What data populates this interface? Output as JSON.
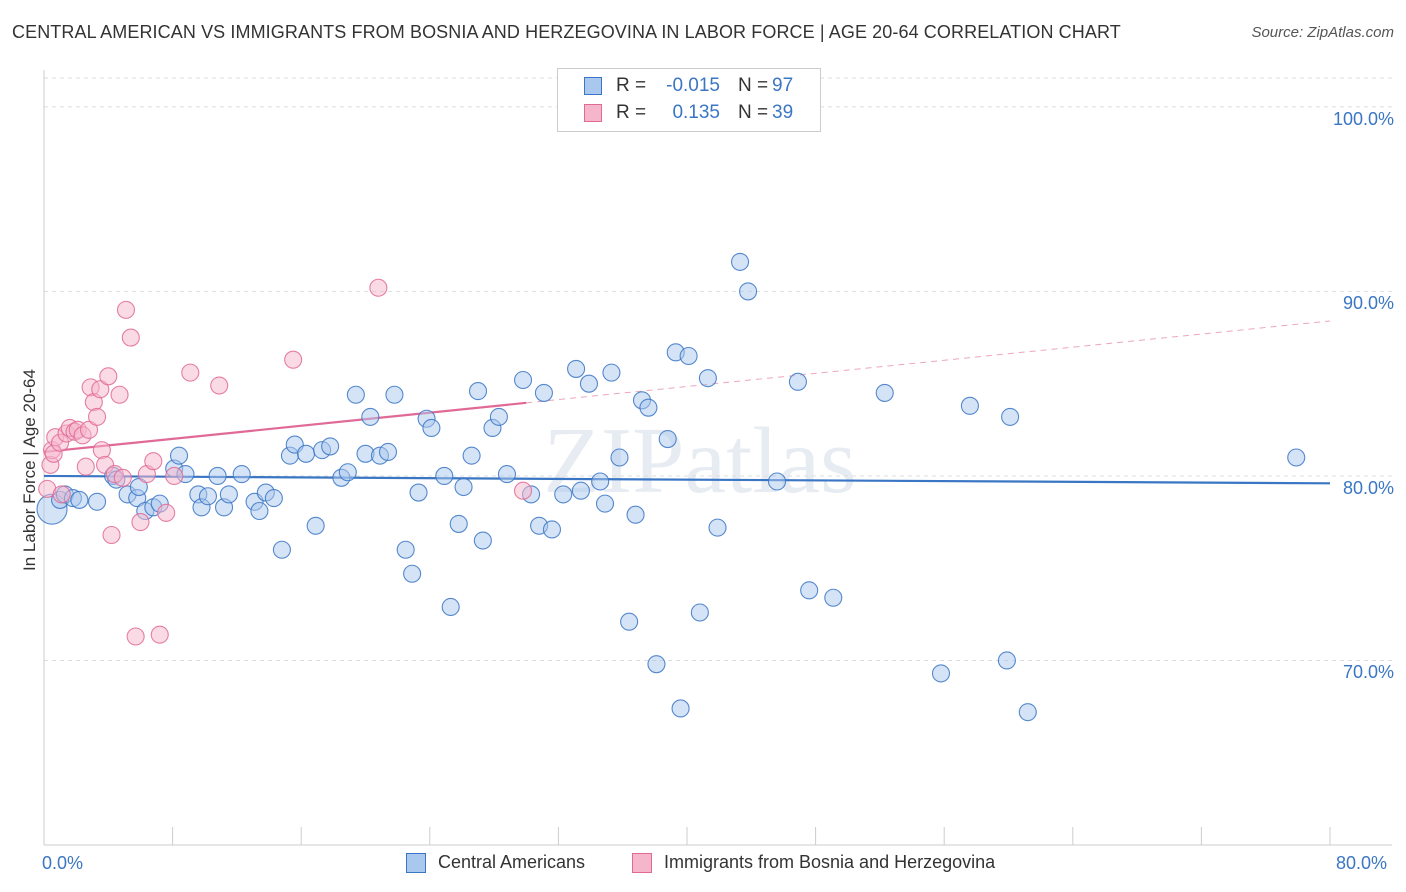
{
  "title": "CENTRAL AMERICAN VS IMMIGRANTS FROM BOSNIA AND HERZEGOVINA IN LABOR FORCE | AGE 20-64 CORRELATION CHART",
  "source": "Source: ZipAtlas.com",
  "watermark": "ZIPatlas",
  "colors": {
    "blue": "#3a76c4",
    "blue_fill": "#aac8ee",
    "pink": "#e06a95",
    "pink_fill": "#f5b6cb",
    "grid": "#dddddd"
  },
  "legend": {
    "rows": [
      {
        "r_label": "R =",
        "r_value": "-0.015",
        "n_label": "N =",
        "n_value": "97"
      },
      {
        "r_label": "R =",
        "r_value": "0.135",
        "n_label": "N =",
        "n_value": "39"
      }
    ]
  },
  "bottom_legend": [
    "Central Americans",
    "Immigrants from Bosnia and Herzegovina"
  ],
  "chart_data": {
    "type": "scatter",
    "title": "CENTRAL AMERICAN VS IMMIGRANTS FROM BOSNIA AND HERZEGOVINA IN LABOR FORCE | AGE 20-64 CORRELATION CHART",
    "xlabel": "",
    "ylabel": "In Labor Force | Age 20-64",
    "xlim": [
      0,
      80
    ],
    "ylim": [
      60,
      102
    ],
    "x_tick_labels": [
      "0.0%",
      "80.0%"
    ],
    "y_ticks": [
      70,
      80,
      90,
      100
    ],
    "y_tick_labels": [
      "70.0%",
      "80.0%",
      "90.0%",
      "100.0%"
    ],
    "grid": true,
    "legend_position": "top-center",
    "series": [
      {
        "name": "Central Americans",
        "color": "#3a76c4",
        "r": -0.015,
        "n": 97,
        "trend": {
          "x": [
            0,
            80
          ],
          "y": [
            80.0,
            79.6
          ]
        },
        "points": [
          [
            0.5,
            78.2
          ],
          [
            1.0,
            78.7
          ],
          [
            1.3,
            79.0
          ],
          [
            1.8,
            78.8
          ],
          [
            2.2,
            78.7
          ],
          [
            3.3,
            78.6
          ],
          [
            4.3,
            80.0
          ],
          [
            4.5,
            79.8
          ],
          [
            5.2,
            79.0
          ],
          [
            5.8,
            78.8
          ],
          [
            5.9,
            79.4
          ],
          [
            6.3,
            78.1
          ],
          [
            6.8,
            78.3
          ],
          [
            7.2,
            78.5
          ],
          [
            8.1,
            80.4
          ],
          [
            8.4,
            81.1
          ],
          [
            8.8,
            80.1
          ],
          [
            9.6,
            79.0
          ],
          [
            9.8,
            78.3
          ],
          [
            10.2,
            78.9
          ],
          [
            10.8,
            80.0
          ],
          [
            11.2,
            78.3
          ],
          [
            11.5,
            79.0
          ],
          [
            12.3,
            80.1
          ],
          [
            13.1,
            78.6
          ],
          [
            13.4,
            78.1
          ],
          [
            13.8,
            79.1
          ],
          [
            14.3,
            78.8
          ],
          [
            14.8,
            76.0
          ],
          [
            15.3,
            81.1
          ],
          [
            15.6,
            81.7
          ],
          [
            16.3,
            81.2
          ],
          [
            16.9,
            77.3
          ],
          [
            17.3,
            81.4
          ],
          [
            17.8,
            81.6
          ],
          [
            18.5,
            79.9
          ],
          [
            18.9,
            80.2
          ],
          [
            19.4,
            84.4
          ],
          [
            20.0,
            81.2
          ],
          [
            20.3,
            83.2
          ],
          [
            20.9,
            81.1
          ],
          [
            21.4,
            81.3
          ],
          [
            21.8,
            84.4
          ],
          [
            22.5,
            76.0
          ],
          [
            22.9,
            74.7
          ],
          [
            23.3,
            79.1
          ],
          [
            23.8,
            83.1
          ],
          [
            24.1,
            82.6
          ],
          [
            24.9,
            80.0
          ],
          [
            25.3,
            72.9
          ],
          [
            25.8,
            77.4
          ],
          [
            26.1,
            79.4
          ],
          [
            26.6,
            81.1
          ],
          [
            27.0,
            84.6
          ],
          [
            27.3,
            76.5
          ],
          [
            27.9,
            82.6
          ],
          [
            28.3,
            83.2
          ],
          [
            28.8,
            80.1
          ],
          [
            29.8,
            85.2
          ],
          [
            30.3,
            79.0
          ],
          [
            30.8,
            77.3
          ],
          [
            31.1,
            84.5
          ],
          [
            31.6,
            77.1
          ],
          [
            32.3,
            79.0
          ],
          [
            33.1,
            85.8
          ],
          [
            33.4,
            79.2
          ],
          [
            33.9,
            85.0
          ],
          [
            34.6,
            79.7
          ],
          [
            34.9,
            78.5
          ],
          [
            35.3,
            85.6
          ],
          [
            35.8,
            81.0
          ],
          [
            36.4,
            72.1
          ],
          [
            36.8,
            77.9
          ],
          [
            37.2,
            84.1
          ],
          [
            37.6,
            83.7
          ],
          [
            38.1,
            69.8
          ],
          [
            38.8,
            82.0
          ],
          [
            39.3,
            86.7
          ],
          [
            39.6,
            67.4
          ],
          [
            40.1,
            86.5
          ],
          [
            40.8,
            72.6
          ],
          [
            41.3,
            85.3
          ],
          [
            41.9,
            77.2
          ],
          [
            43.3,
            91.6
          ],
          [
            43.8,
            90.0
          ],
          [
            45.6,
            79.7
          ],
          [
            46.9,
            85.1
          ],
          [
            47.6,
            73.8
          ],
          [
            49.1,
            73.4
          ],
          [
            52.3,
            84.5
          ],
          [
            55.8,
            69.3
          ],
          [
            57.6,
            83.8
          ],
          [
            59.9,
            70.0
          ],
          [
            60.1,
            83.2
          ],
          [
            61.2,
            67.2
          ],
          [
            77.9,
            81.0
          ]
        ]
      },
      {
        "name": "Immigrants from Bosnia and Herzegovina",
        "color": "#e06a95",
        "r": 0.135,
        "n": 39,
        "trend": {
          "x": [
            0,
            80
          ],
          "y": [
            81.3,
            88.4
          ]
        },
        "points": [
          [
            0.2,
            79.3
          ],
          [
            0.4,
            80.6
          ],
          [
            0.5,
            81.4
          ],
          [
            0.6,
            81.2
          ],
          [
            0.7,
            82.1
          ],
          [
            1.0,
            81.8
          ],
          [
            1.1,
            79.0
          ],
          [
            1.4,
            82.3
          ],
          [
            1.6,
            82.6
          ],
          [
            1.9,
            82.4
          ],
          [
            2.1,
            82.5
          ],
          [
            2.4,
            82.2
          ],
          [
            2.6,
            80.5
          ],
          [
            2.8,
            82.5
          ],
          [
            2.9,
            84.8
          ],
          [
            3.1,
            84.0
          ],
          [
            3.3,
            83.2
          ],
          [
            3.5,
            84.7
          ],
          [
            3.6,
            81.4
          ],
          [
            3.8,
            80.6
          ],
          [
            4.0,
            85.4
          ],
          [
            4.2,
            76.8
          ],
          [
            4.4,
            80.1
          ],
          [
            4.7,
            84.4
          ],
          [
            4.9,
            79.9
          ],
          [
            5.1,
            89.0
          ],
          [
            5.4,
            87.5
          ],
          [
            5.7,
            71.3
          ],
          [
            6.0,
            77.5
          ],
          [
            6.4,
            80.1
          ],
          [
            6.8,
            80.8
          ],
          [
            7.2,
            71.4
          ],
          [
            7.6,
            78.0
          ],
          [
            8.1,
            80.0
          ],
          [
            9.1,
            85.6
          ],
          [
            10.9,
            84.9
          ],
          [
            15.5,
            86.3
          ],
          [
            20.8,
            90.2
          ],
          [
            29.8,
            79.2
          ]
        ]
      }
    ]
  }
}
